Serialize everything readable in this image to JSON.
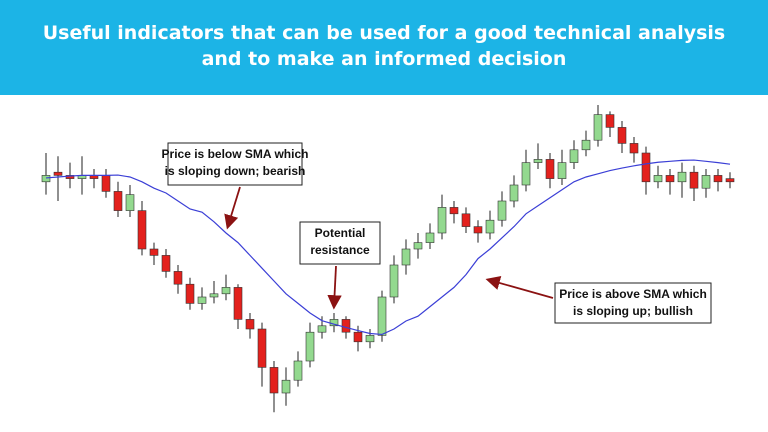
{
  "header": {
    "title_lines": [
      "Useful indicators that can be used for a good technical analysis",
      "and to make an informed decision"
    ]
  },
  "chart_data": {
    "type": "candlestick",
    "categories": [
      null,
      null,
      null,
      null,
      null,
      null,
      null,
      null,
      null,
      null,
      null,
      null,
      null,
      null,
      null,
      null,
      null,
      null,
      null,
      null,
      null,
      null,
      null,
      null,
      null,
      null,
      null,
      null,
      null,
      null,
      null,
      null,
      null,
      null,
      null,
      null,
      null,
      null,
      null,
      null,
      null,
      null,
      null,
      null,
      null,
      null,
      null,
      null,
      null,
      null,
      null,
      null,
      null,
      null,
      null,
      null,
      null,
      null
    ],
    "series": [
      {
        "open": [
          76,
          79,
          78,
          77,
          78,
          78,
          73,
          67,
          67,
          55,
          53,
          48,
          44,
          38,
          40,
          41,
          43,
          33,
          30,
          18,
          10,
          14,
          20,
          29,
          31,
          33,
          29,
          26,
          28,
          40,
          50,
          55,
          57,
          60,
          68,
          66,
          62,
          60,
          64,
          70,
          75,
          82,
          83,
          77,
          82,
          86,
          89,
          97,
          93,
          88,
          85,
          76,
          78,
          76,
          79,
          74,
          78,
          77
        ],
        "high": [
          85,
          84,
          82,
          84,
          80,
          80,
          76,
          75,
          70,
          57,
          55,
          50,
          46,
          43,
          45,
          47,
          44,
          35,
          32,
          20,
          18,
          23,
          32,
          34,
          35,
          34,
          31,
          30,
          42,
          53,
          58,
          60,
          63,
          72,
          70,
          68,
          64,
          67,
          73,
          78,
          86,
          88,
          85,
          86,
          89,
          92,
          100,
          98,
          95,
          90,
          87,
          81,
          80,
          82,
          81,
          80,
          80,
          79
        ],
        "low": [
          72,
          70,
          74,
          72,
          74,
          71,
          65,
          65,
          53,
          50,
          46,
          41,
          36,
          36,
          38,
          39,
          30,
          27,
          12,
          4,
          6,
          12,
          18,
          27,
          29,
          27,
          23,
          24,
          26,
          38,
          47,
          52,
          55,
          58,
          63,
          60,
          57,
          58,
          62,
          68,
          73,
          80,
          74,
          75,
          80,
          84,
          87,
          90,
          85,
          82,
          72,
          74,
          72,
          71,
          70,
          71,
          73,
          74
        ],
        "close": [
          78,
          78,
          77,
          78,
          77,
          73,
          67,
          72,
          55,
          53,
          48,
          44,
          38,
          40,
          41,
          43,
          33,
          30,
          18,
          10,
          14,
          20,
          29,
          31,
          33,
          29,
          26,
          28,
          40,
          50,
          55,
          57,
          60,
          68,
          66,
          62,
          60,
          64,
          70,
          75,
          82,
          83,
          77,
          82,
          86,
          89,
          97,
          93,
          88,
          85,
          76,
          78,
          76,
          79,
          74,
          78,
          76,
          76
        ]
      }
    ],
    "up_color": "#93d98f",
    "down_color": "#e3211d",
    "sma": {
      "color": "#3b3fd6",
      "values": [
        77.2,
        77.5,
        77.8,
        78,
        78,
        78,
        78.1,
        77.5,
        76,
        74,
        72.5,
        70,
        67.5,
        66.5,
        63.5,
        60,
        57,
        53,
        49,
        45,
        41,
        38,
        35,
        32.6,
        31.5,
        30.5,
        29.5,
        28.6,
        28.3,
        30,
        32.5,
        34,
        37,
        40,
        43,
        47,
        52,
        55,
        58.5,
        62,
        66,
        68.5,
        71,
        73.5,
        76,
        77.5,
        78.5,
        79.5,
        80.3,
        81,
        81.6,
        82.1,
        82.4,
        82.7,
        82.8,
        82.4,
        82,
        81.5
      ]
    },
    "ylim": [
      0,
      100
    ],
    "annotations": [
      {
        "lines": [
          "Price is below SMA which",
          "is sloping down; bearish"
        ]
      },
      {
        "lines": [
          "Potential",
          "resistance"
        ]
      },
      {
        "lines": [
          "Price is above SMA which",
          "is sloping up; bullish"
        ]
      }
    ]
  }
}
